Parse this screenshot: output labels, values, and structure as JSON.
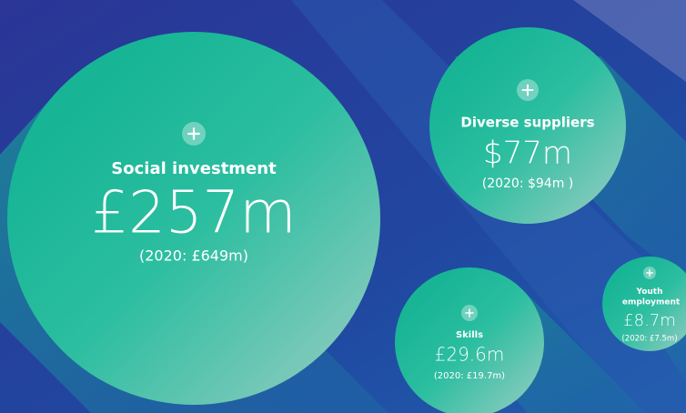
{
  "bubbles": [
    {
      "label": "Social investment",
      "value": "£257m",
      "previous": "(2020: £649m)"
    },
    {
      "label": "Diverse suppliers",
      "value": "$77m",
      "previous": "(2020: $94m )"
    },
    {
      "label": "Skills",
      "value": "£29.6m",
      "previous": "(2020: £19.7m)"
    },
    {
      "label": "Youth employment",
      "value": "£8.7m",
      "previous": "(2020: £7.5m)"
    }
  ]
}
